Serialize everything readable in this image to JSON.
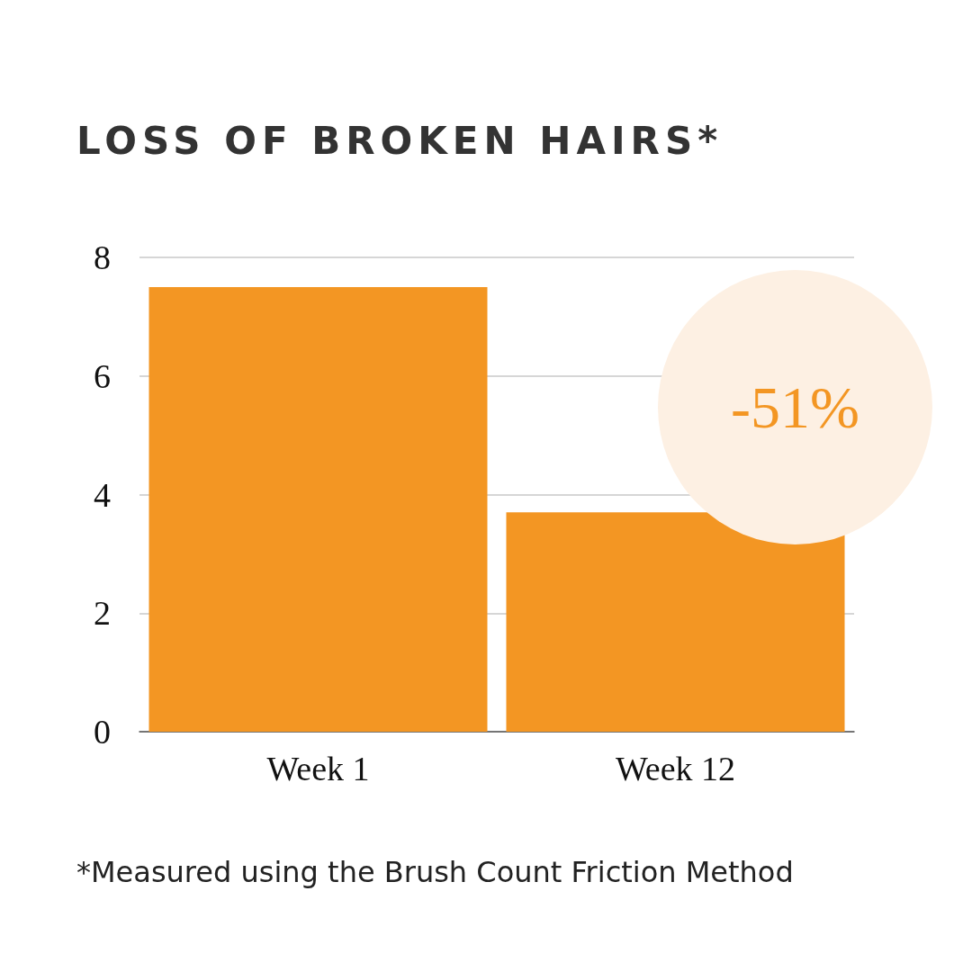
{
  "chart_data": {
    "type": "bar",
    "title": "LOSS OF BROKEN HAIRS*",
    "categories": [
      "Week 1",
      "Week 12"
    ],
    "values": [
      7.5,
      3.7
    ],
    "color": "#f39623",
    "ylim": [
      0,
      8
    ],
    "yticks": [
      0,
      2,
      4,
      6,
      8
    ],
    "grid": "y",
    "annotations": [
      "-51%",
      "*Measured using the Brush Count Friction Method"
    ]
  }
}
